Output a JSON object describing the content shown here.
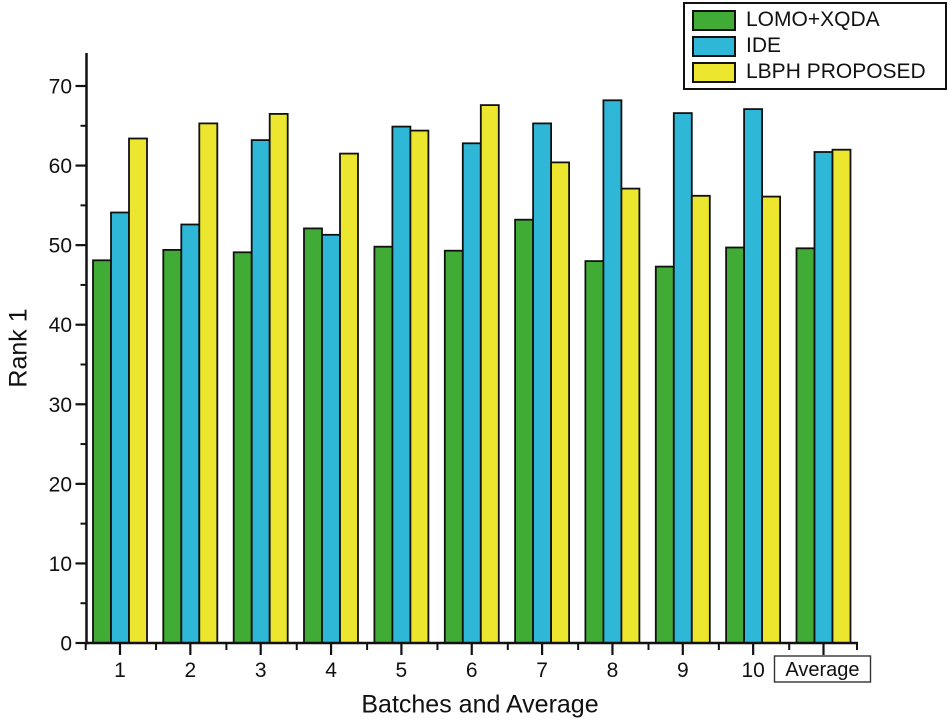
{
  "figure": {
    "background": "#ffffff"
  },
  "chart_data": {
    "type": "bar",
    "title": "",
    "xlabel": "Batches and Average",
    "ylabel": "Rank 1",
    "categories": [
      "1",
      "2",
      "3",
      "4",
      "5",
      "6",
      "7",
      "8",
      "9",
      "10",
      "Average"
    ],
    "series": [
      {
        "name": "LOMO+XQDA",
        "color": "#40ac35",
        "values": [
          48.1,
          49.4,
          49.1,
          52.1,
          49.8,
          49.3,
          53.2,
          48.0,
          47.3,
          49.7,
          49.6
        ]
      },
      {
        "name": "IDE",
        "color": "#2fb7d8",
        "values": [
          54.1,
          52.6,
          63.2,
          51.3,
          64.9,
          62.8,
          65.3,
          68.2,
          66.6,
          67.1,
          61.7
        ]
      },
      {
        "name": "LBPH PROPOSED",
        "color": "#ede62e",
        "values": [
          63.4,
          65.3,
          66.5,
          61.5,
          64.4,
          67.6,
          60.4,
          57.1,
          56.2,
          56.1,
          62.0
        ]
      }
    ],
    "ylim": [
      0,
      74
    ],
    "yticks_major": [
      0,
      10,
      20,
      30,
      40,
      50,
      60,
      70
    ],
    "yticks_minor": [
      5,
      15,
      25,
      35,
      45,
      55,
      65
    ],
    "grid": false,
    "legend_position": "top-right",
    "bar_border_color": "#111111",
    "axis_color": "#111111",
    "boxed_category": "Average"
  }
}
